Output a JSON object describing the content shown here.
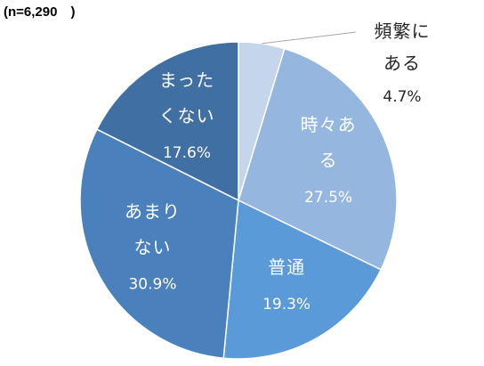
{
  "header": {
    "sample_size": "(n=6,290　)"
  },
  "chart_data": {
    "type": "pie",
    "title": "",
    "slices": [
      {
        "label": "頻繁にある",
        "value": 4.7,
        "value_label": "4.7%",
        "color": "#c5d5ec"
      },
      {
        "label": "時々ある",
        "value": 27.5,
        "value_label": "27.5%",
        "color": "#95b6df"
      },
      {
        "label": "普通",
        "value": 19.3,
        "value_label": "19.3%",
        "color": "#5b9ad8"
      },
      {
        "label": "あまりない",
        "value": 30.9,
        "value_label": "30.9%",
        "color": "#4a80bb"
      },
      {
        "label": "まったくない",
        "value": 17.6,
        "value_label": "17.6%",
        "color": "#3f6fa3"
      }
    ],
    "start": "12 o'clock",
    "direction": "clockwise"
  }
}
